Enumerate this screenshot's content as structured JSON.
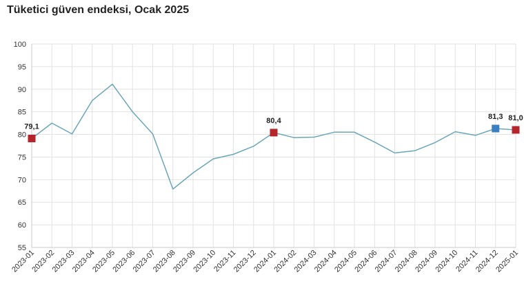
{
  "title": "Tüketici güven endeksi, Ocak 2025",
  "chart_data": {
    "type": "line",
    "title": "Tüketici güven endeksi, Ocak 2025",
    "xlabel": "",
    "ylabel": "",
    "ylim": [
      55,
      100
    ],
    "yticks": [
      55,
      60,
      65,
      70,
      75,
      80,
      85,
      90,
      95,
      100
    ],
    "grid": true,
    "legend": "none",
    "categories": [
      "2023-01",
      "2023-02",
      "2023-03",
      "2023-04",
      "2023-05",
      "2023-06",
      "2023-07",
      "2023-08",
      "2023-09",
      "2023-10",
      "2023-11",
      "2023-12",
      "2024-01",
      "2024-02",
      "2024-03",
      "2024-04",
      "2024-05",
      "2024-06",
      "2024-07",
      "2024-08",
      "2024-09",
      "2024-10",
      "2024-11",
      "2024-12",
      "2025-01"
    ],
    "series": [
      {
        "values": [
          79.1,
          82.5,
          80.1,
          87.5,
          91.1,
          85.0,
          80.1,
          67.9,
          71.5,
          74.6,
          75.6,
          77.4,
          80.4,
          79.3,
          79.4,
          80.5,
          80.5,
          78.3,
          75.9,
          76.4,
          78.2,
          80.6,
          79.8,
          81.3,
          81.0
        ],
        "color": "#6aa6b8"
      }
    ],
    "markers": [
      {
        "index": 0,
        "label": "79,1",
        "color": "#b5262c"
      },
      {
        "index": 12,
        "label": "80,4",
        "color": "#b5262c"
      },
      {
        "index": 23,
        "label": "81,3",
        "color": "#3a7fc0"
      },
      {
        "index": 24,
        "label": "81,0",
        "color": "#b5262c"
      }
    ]
  }
}
